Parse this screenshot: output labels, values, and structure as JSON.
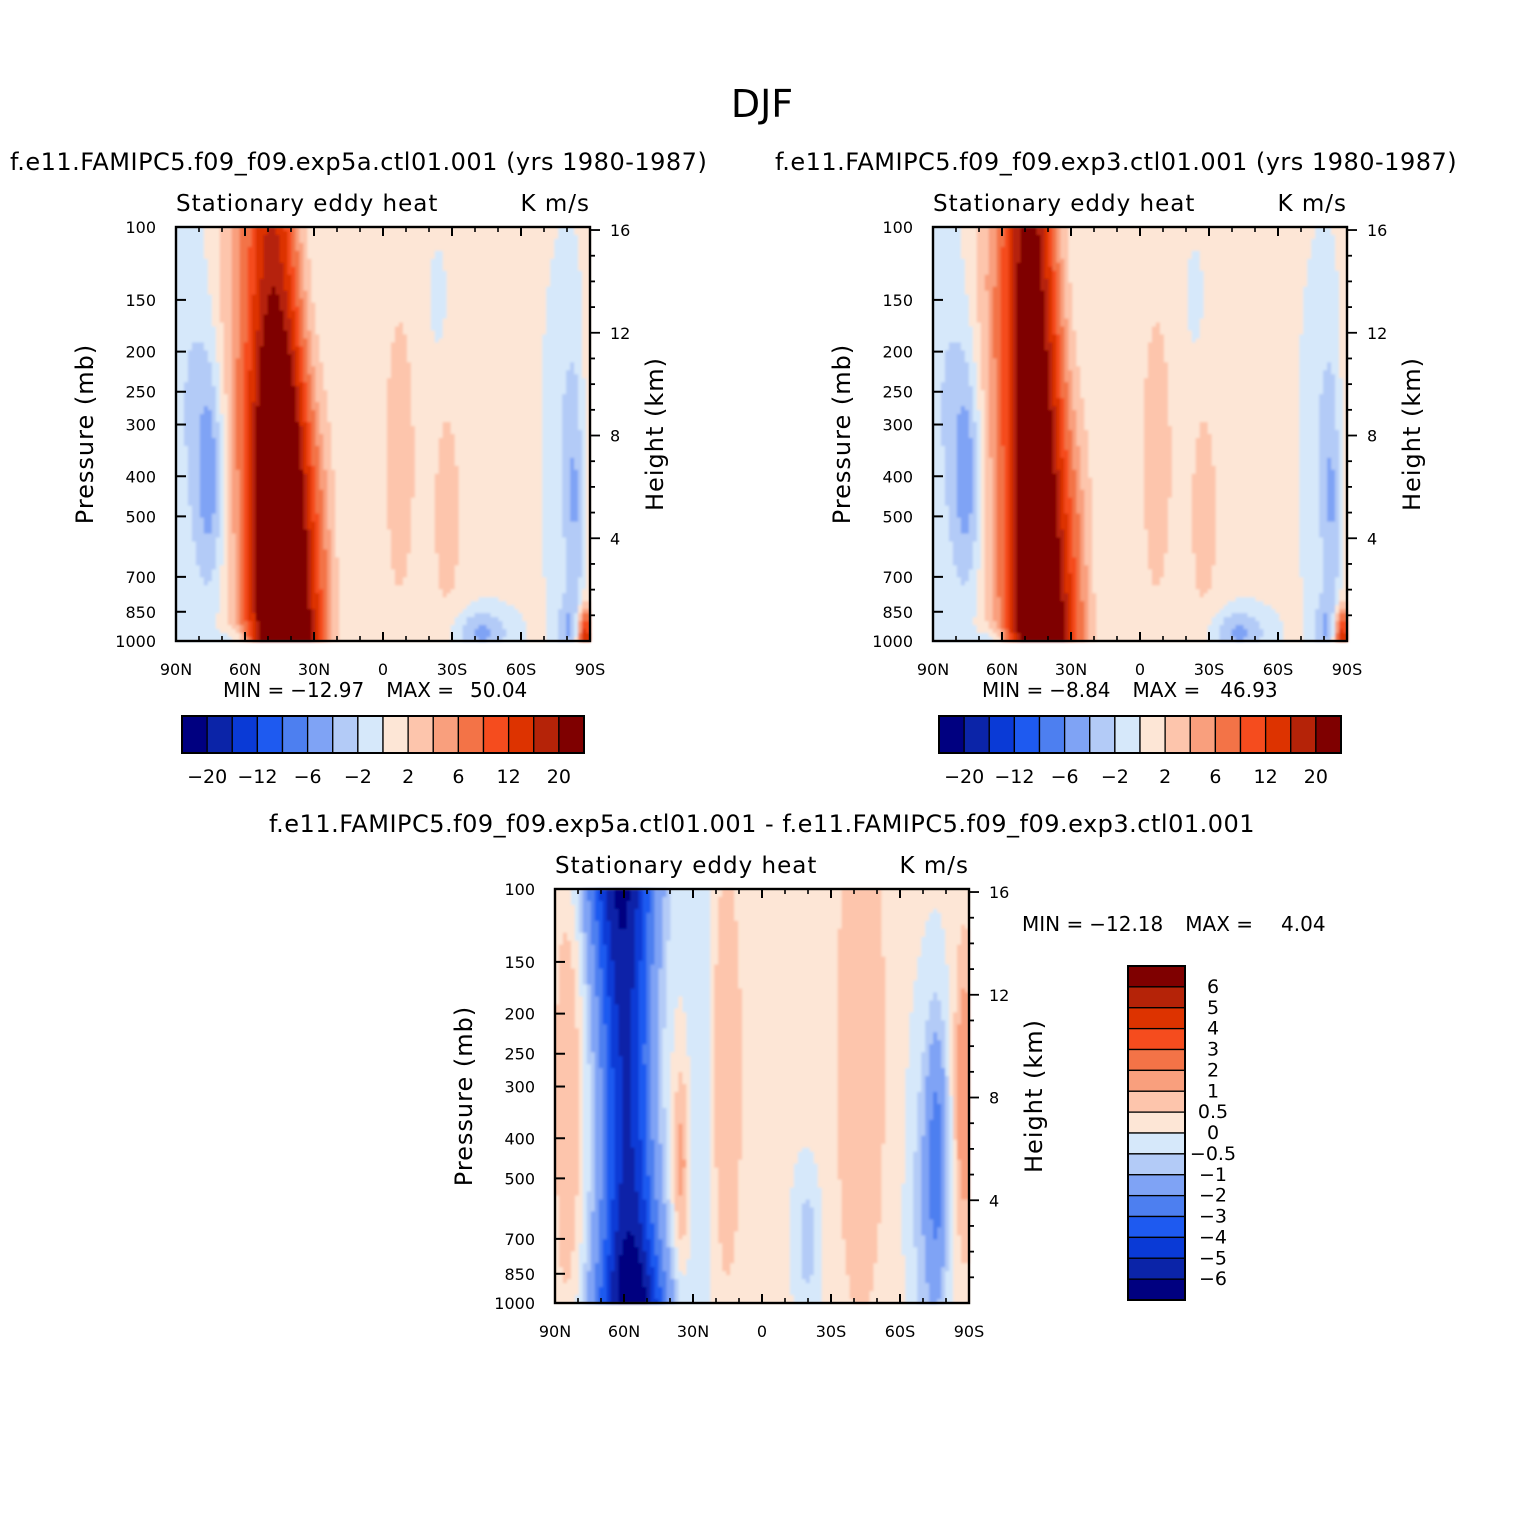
{
  "super_title": "DJF",
  "colors": {
    "land_fill": "#ffffff",
    "frame": "#000000"
  },
  "chart_data": [
    {
      "type": "contour",
      "run_title": "f.e11.FAMIPC5.f09_f09.exp5a.ctl01.001 (yrs 1980-1987)",
      "left_title": "Stationary eddy heat",
      "right_title": "K m/s",
      "ylabel": "Pressure (mb)",
      "ylabel_right": "Height (km)",
      "x_ticks": [
        "90N",
        "60N",
        "30N",
        "0",
        "30S",
        "60S",
        "90S"
      ],
      "y_ticks": [
        100,
        150,
        200,
        250,
        300,
        400,
        500,
        700,
        850,
        1000
      ],
      "height_ticks": [
        16,
        12,
        8,
        4
      ],
      "y_log_scale": true,
      "min_label": "MIN =",
      "min_value": "-12.97",
      "max_label": "MAX =",
      "max_value": "50.04",
      "colorbar_orientation": "horizontal",
      "colorbar_levels": [
        -20,
        -16,
        -12,
        -9,
        -6,
        -4,
        -2,
        0,
        2,
        4,
        6,
        9,
        12,
        16,
        20
      ],
      "colorbar_labels": [
        "-20",
        "-12",
        "-6",
        "-2",
        "2",
        "6",
        "12",
        "20"
      ],
      "colorbar_colors": [
        "#000080",
        "#0b24a8",
        "#0a3ad6",
        "#1e5af0",
        "#4d7ff0",
        "#7fa3f5",
        "#b3cbf7",
        "#d6e8fa",
        "#fde6d6",
        "#fdc5ac",
        "#f99f7d",
        "#f37347",
        "#f54c1e",
        "#dd3300",
        "#b52308",
        "#7f0000"
      ]
    },
    {
      "type": "contour",
      "run_title": "f.e11.FAMIPC5.f09_f09.exp3.ctl01.001 (yrs 1980-1987)",
      "left_title": "Stationary eddy heat",
      "right_title": "K m/s",
      "ylabel": "Pressure (mb)",
      "ylabel_right": "Height (km)",
      "x_ticks": [
        "90N",
        "60N",
        "30N",
        "0",
        "30S",
        "60S",
        "90S"
      ],
      "y_ticks": [
        100,
        150,
        200,
        250,
        300,
        400,
        500,
        700,
        850,
        1000
      ],
      "height_ticks": [
        16,
        12,
        8,
        4
      ],
      "y_log_scale": true,
      "min_label": "MIN =",
      "min_value": "-8.84",
      "max_label": "MAX =",
      "max_value": "46.93",
      "colorbar_orientation": "horizontal",
      "colorbar_levels": [
        -20,
        -16,
        -12,
        -9,
        -6,
        -4,
        -2,
        0,
        2,
        4,
        6,
        9,
        12,
        16,
        20
      ],
      "colorbar_labels": [
        "-20",
        "-12",
        "-6",
        "-2",
        "2",
        "6",
        "12",
        "20"
      ],
      "colorbar_colors": [
        "#000080",
        "#0b24a8",
        "#0a3ad6",
        "#1e5af0",
        "#4d7ff0",
        "#7fa3f5",
        "#b3cbf7",
        "#d6e8fa",
        "#fde6d6",
        "#fdc5ac",
        "#f99f7d",
        "#f37347",
        "#f54c1e",
        "#dd3300",
        "#b52308",
        "#7f0000"
      ]
    },
    {
      "type": "contour",
      "run_title": "f.e11.FAMIPC5.f09_f09.exp5a.ctl01.001 - f.e11.FAMIPC5.f09_f09.exp3.ctl01.001",
      "left_title": "Stationary eddy heat",
      "right_title": "K m/s",
      "ylabel": "Pressure (mb)",
      "ylabel_right": "Height (km)",
      "x_ticks": [
        "90N",
        "60N",
        "30N",
        "0",
        "30S",
        "60S",
        "90S"
      ],
      "y_ticks": [
        100,
        150,
        200,
        250,
        300,
        400,
        500,
        700,
        850,
        1000
      ],
      "height_ticks": [
        16,
        12,
        8,
        4
      ],
      "y_log_scale": true,
      "min_label": "MIN =",
      "min_value": "-12.18",
      "max_label": "MAX =",
      "max_value": "4.04",
      "colorbar_orientation": "vertical",
      "colorbar_levels": [
        6,
        5,
        4,
        3,
        2,
        1,
        0.5,
        0,
        -0.5,
        -1,
        -2,
        -3,
        -4,
        -5,
        -6
      ],
      "colorbar_labels": [
        "6",
        "5",
        "4",
        "3",
        "2",
        "1",
        "0.5",
        "0",
        "-0.5",
        "-1",
        "-2",
        "-3",
        "-4",
        "-5",
        "-6"
      ],
      "colorbar_colors": [
        "#7f0000",
        "#b52308",
        "#dd3300",
        "#f54c1e",
        "#f37347",
        "#f99f7d",
        "#fdc5ac",
        "#fde6d6",
        "#d6e8fa",
        "#b3cbf7",
        "#7fa3f5",
        "#4d7ff0",
        "#1e5af0",
        "#0a3ad6",
        "#0b24a8",
        "#000080"
      ]
    }
  ]
}
